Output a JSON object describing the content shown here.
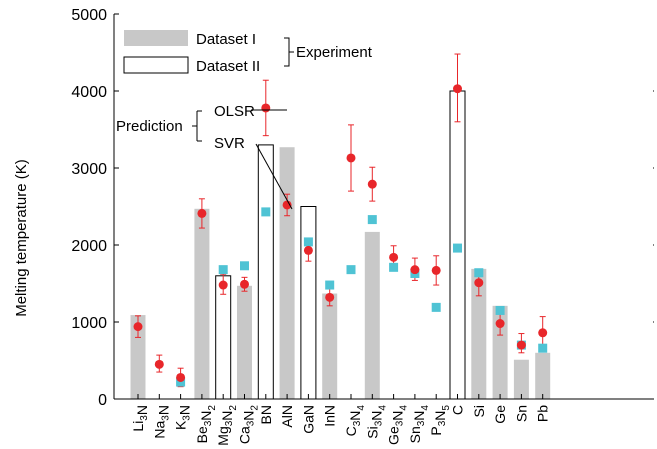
{
  "chart_data": {
    "type": "bar",
    "ylabel": "Melting temperature (K)",
    "ylim": [
      0,
      5000
    ],
    "yticks": [
      0,
      1000,
      2000,
      3000,
      4000,
      5000
    ],
    "categories": [
      {
        "base": "Li",
        "sub": "3",
        "rest": "N",
        "sub2": ""
      },
      {
        "base": "Na",
        "sub": "3",
        "rest": "N",
        "sub2": ""
      },
      {
        "base": "K",
        "sub": "3",
        "rest": "N",
        "sub2": ""
      },
      {
        "base": "Be",
        "sub": "3",
        "rest": "N",
        "sub2": "2"
      },
      {
        "base": "Mg",
        "sub": "3",
        "rest": "N",
        "sub2": "2"
      },
      {
        "base": "Ca",
        "sub": "3",
        "rest": "N",
        "sub2": "2"
      },
      {
        "base": "BN",
        "sub": "",
        "rest": "",
        "sub2": ""
      },
      {
        "base": "AlN",
        "sub": "",
        "rest": "",
        "sub2": ""
      },
      {
        "base": "GaN",
        "sub": "",
        "rest": "",
        "sub2": ""
      },
      {
        "base": "InN",
        "sub": "",
        "rest": "",
        "sub2": ""
      },
      {
        "base": "C",
        "sub": "3",
        "rest": "N",
        "sub2": "4"
      },
      {
        "base": "Si",
        "sub": "3",
        "rest": "N",
        "sub2": "4"
      },
      {
        "base": "Ge",
        "sub": "3",
        "rest": "N",
        "sub2": "4"
      },
      {
        "base": "Sn",
        "sub": "3",
        "rest": "N",
        "sub2": "4"
      },
      {
        "base": "P",
        "sub": "3",
        "rest": "N",
        "sub2": "5"
      },
      {
        "base": "C",
        "sub": "",
        "rest": "",
        "sub2": ""
      },
      {
        "base": "Si",
        "sub": "",
        "rest": "",
        "sub2": ""
      },
      {
        "base": "Ge",
        "sub": "",
        "rest": "",
        "sub2": ""
      },
      {
        "base": "Sn",
        "sub": "",
        "rest": "",
        "sub2": ""
      },
      {
        "base": "Pb",
        "sub": "",
        "rest": "",
        "sub2": ""
      }
    ],
    "series": [
      {
        "name": "Dataset I",
        "group": "Experiment",
        "style": "gray-bar",
        "values": [
          1090,
          null,
          null,
          2470,
          null,
          1470,
          null,
          3270,
          null,
          1370,
          null,
          2170,
          null,
          null,
          null,
          null,
          1690,
          1210,
          510,
          600
        ]
      },
      {
        "name": "Dataset II",
        "group": "Experiment",
        "style": "outline-bar",
        "values": [
          null,
          null,
          null,
          null,
          1600,
          null,
          3300,
          null,
          2500,
          null,
          null,
          null,
          null,
          null,
          null,
          4000,
          null,
          null,
          null,
          null
        ]
      },
      {
        "name": "OLSR",
        "group": "Prediction",
        "style": "red-circle",
        "values": [
          940,
          450,
          280,
          2410,
          1480,
          1490,
          3780,
          2520,
          1930,
          1320,
          3130,
          2790,
          1840,
          1680,
          1670,
          4030,
          1510,
          980,
          700,
          860
        ],
        "err_low": [
          140,
          100,
          120,
          190,
          120,
          90,
          360,
          140,
          140,
          110,
          430,
          220,
          140,
          140,
          190,
          430,
          170,
          150,
          100,
          160
        ],
        "err_high": [
          140,
          120,
          120,
          190,
          140,
          90,
          360,
          140,
          140,
          110,
          430,
          220,
          150,
          150,
          190,
          450,
          160,
          160,
          150,
          210
        ]
      },
      {
        "name": "SVR",
        "group": "Prediction",
        "style": "teal-square",
        "values": [
          null,
          null,
          220,
          null,
          1680,
          1730,
          2430,
          null,
          2040,
          1480,
          1680,
          2330,
          1710,
          1630,
          1190,
          1960,
          1640,
          1150,
          700,
          660
        ]
      }
    ],
    "colors": {
      "gray_bar": "#c8c8c8",
      "olsr": "#e8262a",
      "svr": "#4fc3d4",
      "axis": "#000000"
    },
    "legend": {
      "experiment_label": "Experiment",
      "prediction_label": "Prediction",
      "dataset1_label": "Dataset I",
      "dataset2_label": "Dataset II",
      "olsr_label": "OLSR",
      "svr_label": "SVR"
    }
  }
}
